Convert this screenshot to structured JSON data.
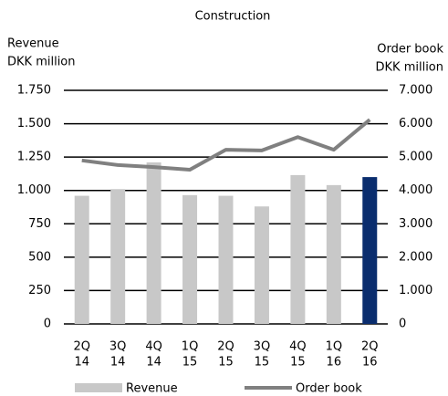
{
  "chart_data": {
    "type": "bar_line",
    "title": "Construction",
    "ylabel": [
      "Revenue",
      "DKK million"
    ],
    "y2label": [
      "Order book",
      "DKK million"
    ],
    "categories": [
      [
        "2Q",
        "14"
      ],
      [
        "3Q",
        "14"
      ],
      [
        "4Q",
        "14"
      ],
      [
        "1Q",
        "15"
      ],
      [
        "2Q",
        "15"
      ],
      [
        "3Q",
        "15"
      ],
      [
        "4Q",
        "15"
      ],
      [
        "1Q",
        "16"
      ],
      [
        "2Q",
        "16"
      ]
    ],
    "series": [
      {
        "name": "Revenue",
        "type": "bar",
        "color": "#c8c8c8",
        "colors": [
          "#c8c8c8",
          "#c8c8c8",
          "#c8c8c8",
          "#c8c8c8",
          "#c8c8c8",
          "#c8c8c8",
          "#c8c8c8",
          "#c8c8c8",
          "#0a2d6e"
        ],
        "values": [
          960,
          1010,
          1210,
          965,
          960,
          880,
          1115,
          1040,
          1100
        ]
      },
      {
        "name": "Order book",
        "type": "line",
        "axis": "y2",
        "color": "#808080",
        "values": [
          4900,
          4760,
          4700,
          4620,
          5220,
          5200,
          5600,
          5220,
          6120
        ]
      }
    ],
    "ylim": [
      0,
      1750
    ],
    "yticks": [
      0,
      250,
      500,
      750,
      {
        "value": 1000,
        "label": "1.000"
      },
      {
        "value": 1250,
        "label": "1.250"
      },
      {
        "value": 1500,
        "label": "1.500"
      },
      {
        "value": 1750,
        "label": "1.750"
      }
    ],
    "y2lim": [
      0,
      7000
    ],
    "y2ticks": [
      0,
      {
        "value": 1000,
        "label": "1.000"
      },
      {
        "value": 2000,
        "label": "2.000"
      },
      {
        "value": 3000,
        "label": "3.000"
      },
      {
        "value": 4000,
        "label": "4.000"
      },
      {
        "value": 5000,
        "label": "5.000"
      },
      {
        "value": 6000,
        "label": "6.000"
      },
      {
        "value": 7000,
        "label": "7.000"
      }
    ],
    "grid": true,
    "legend": "bottom"
  }
}
